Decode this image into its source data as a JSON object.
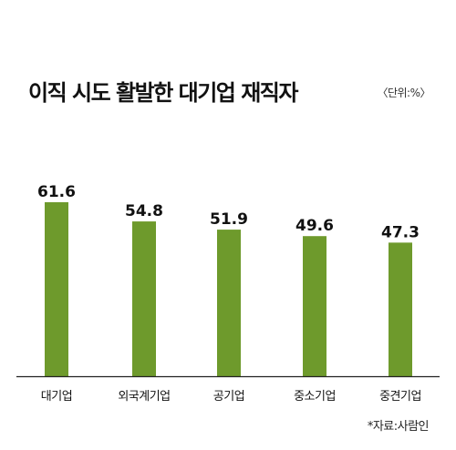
{
  "header": {
    "title": "이직 시도 활발한 대기업 재직자",
    "unit": "〈단위:%〉"
  },
  "footer": {
    "source": "*자료:사람인"
  },
  "colors": {
    "bar": "#6e9a2c",
    "axis": "#222222",
    "text": "#111111"
  },
  "chart_data": {
    "type": "bar",
    "categories": [
      "대기업",
      "외국계기업",
      "공기업",
      "중소기업",
      "중견기업"
    ],
    "values": [
      61.6,
      54.8,
      51.9,
      49.6,
      47.3
    ],
    "value_labels": [
      "61.6",
      "54.8",
      "51.9",
      "49.6",
      "47.3"
    ],
    "title": "이직 시도 활발한 대기업 재직자",
    "xlabel": "",
    "ylabel": "",
    "unit": "%",
    "ylim": [
      0,
      70
    ],
    "grid": false,
    "legend": "none"
  }
}
